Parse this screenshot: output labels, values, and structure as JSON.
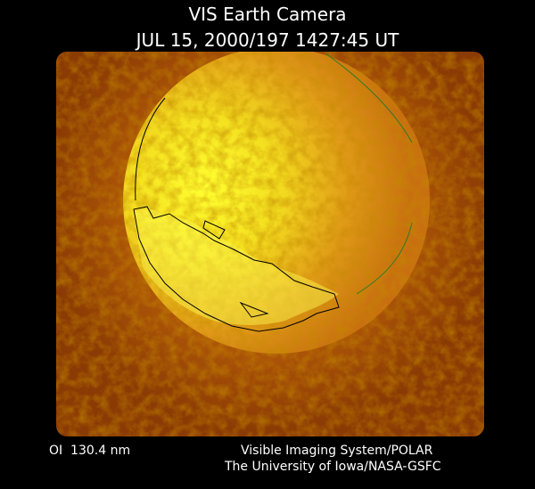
{
  "header": {
    "title": "VIS Earth Camera",
    "timestamp": "JUL 15, 2000/197 1427:45 UT"
  },
  "footer": {
    "wavelength": "OI  130.4 nm",
    "instrument": "Visible Imaging System/POLAR",
    "credit": "The University of Iowa/NASA-GSFC"
  }
}
